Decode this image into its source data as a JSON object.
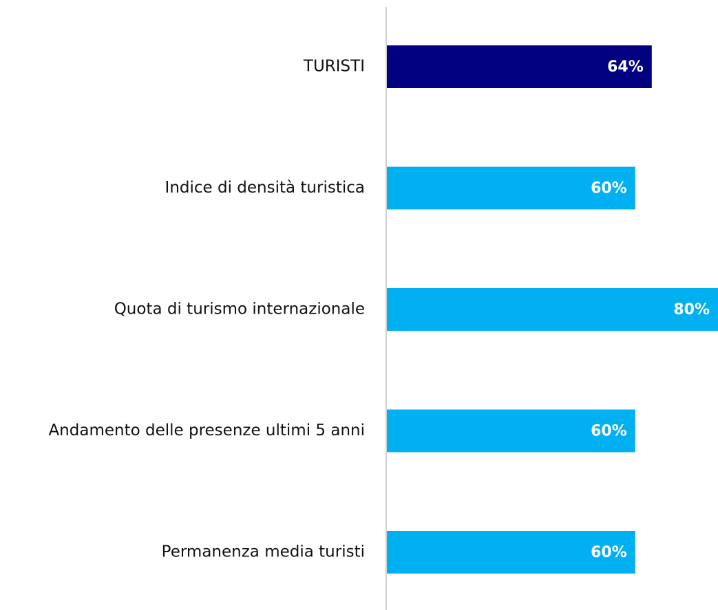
{
  "chart_data": {
    "type": "hbar",
    "categories": [
      "TURISTI",
      "Indice di densità turistica",
      "Quota di turismo internazionale",
      "Andamento delle presenze ultimi 5 anni",
      "Permanenza media turisti"
    ],
    "values": [
      64,
      60,
      80,
      60,
      60
    ],
    "value_labels": [
      "64%",
      "60%",
      "80%",
      "60%",
      "60%"
    ],
    "colors": [
      "#000080",
      "#00b0f0",
      "#00b0f0",
      "#00b0f0",
      "#00b0f0"
    ],
    "xlim": [
      0,
      80
    ]
  }
}
